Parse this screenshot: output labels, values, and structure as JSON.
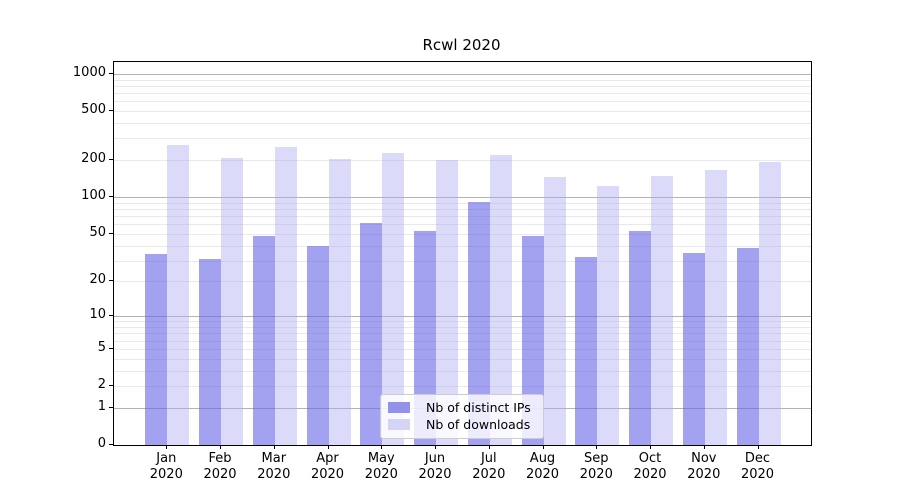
{
  "chart_data": {
    "type": "bar",
    "title": "Rcwl 2020",
    "categories": [
      "Jan",
      "Feb",
      "Mar",
      "Apr",
      "May",
      "Jun",
      "Jul",
      "Aug",
      "Sep",
      "Oct",
      "Nov",
      "Dec"
    ],
    "category_year": "2020",
    "series": [
      {
        "name": "Nb of distinct IPs",
        "values": [
          34,
          31,
          48,
          40,
          61,
          53,
          92,
          48,
          32,
          53,
          35,
          38
        ],
        "bar_color": "rgba(100,100,230,0.6)",
        "legend_color": "#9292ea"
      },
      {
        "name": "Nb of downloads",
        "values": [
          266,
          208,
          256,
          203,
          228,
          202,
          222,
          146,
          123,
          150,
          165,
          193
        ],
        "bar_color": "rgba(170,170,240,0.42)",
        "legend_color": "#d4d4f6"
      }
    ],
    "yscale": "log10(value+1)",
    "ylim": [
      0,
      1250
    ],
    "yticks_labeled": [
      0,
      1,
      2,
      5,
      10,
      20,
      50,
      100,
      200,
      500,
      1000
    ],
    "gridlines_major": [
      1,
      10,
      100,
      1000
    ],
    "gridlines_minor": [
      2,
      3,
      4,
      5,
      6,
      7,
      8,
      9,
      20,
      30,
      40,
      50,
      60,
      70,
      80,
      90,
      200,
      300,
      400,
      500,
      600,
      700,
      800,
      900
    ],
    "grid": true,
    "legend_position": "lower center",
    "colors": {
      "major_grid": "#b3b3b3",
      "minor_grid": "#e9e9e9",
      "spine": "#000000",
      "background": "#ffffff",
      "text": "#000000"
    }
  }
}
